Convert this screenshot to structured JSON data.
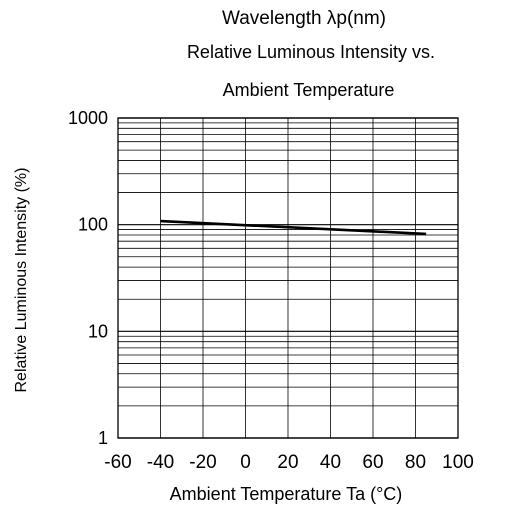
{
  "chart_data": {
    "type": "line",
    "heading": "Wavelength  λp(nm)",
    "title_line1": "Relative Luminous Intensity vs.",
    "title_line2": "Ambient Temperature",
    "xlabel": "Ambient Temperature Ta (°C)",
    "ylabel": "Relative Luminous Intensity  (%)",
    "xlim": [
      -60,
      100
    ],
    "ylim": [
      1,
      1000
    ],
    "yscale": "log",
    "grid": true,
    "x_ticks": [
      -60,
      -40,
      -20,
      0,
      20,
      40,
      60,
      80,
      100
    ],
    "y_ticks": [
      1,
      10,
      100,
      1000
    ],
    "series": [
      {
        "x": [
          -40,
          85
        ],
        "y": [
          108,
          82
        ]
      }
    ],
    "colors": {
      "line": "#000000",
      "grid": "#000000"
    }
  }
}
